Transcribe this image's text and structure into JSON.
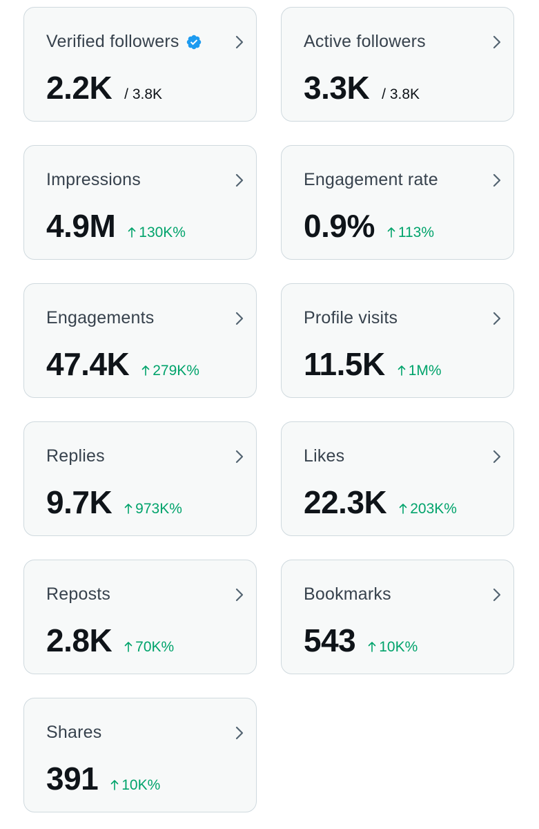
{
  "colors": {
    "card_background": "#f7f9f9",
    "card_border": "#cfd9de",
    "label_text": "#37424d",
    "value_text": "#0f1419",
    "positive_change": "#00a36b",
    "verified_badge": "#1d9bf0",
    "chevron": "#536471"
  },
  "icons": {
    "verified": "verified-badge-icon",
    "chevron": "chevron-right-icon",
    "change": "arrow-up-icon"
  },
  "cards": [
    {
      "title": "Verified followers",
      "value": "2.2K",
      "total": "/ 3.8K",
      "verified": true
    },
    {
      "title": "Active followers",
      "value": "3.3K",
      "total": "/ 3.8K"
    },
    {
      "title": "Impressions",
      "value": "4.9M",
      "change": "130K%"
    },
    {
      "title": "Engagement rate",
      "value": "0.9%",
      "change": "113%"
    },
    {
      "title": "Engagements",
      "value": "47.4K",
      "change": "279K%"
    },
    {
      "title": "Profile visits",
      "value": "11.5K",
      "change": "1M%"
    },
    {
      "title": "Replies",
      "value": "9.7K",
      "change": "973K%"
    },
    {
      "title": "Likes",
      "value": "22.3K",
      "change": "203K%"
    },
    {
      "title": "Reposts",
      "value": "2.8K",
      "change": "70K%"
    },
    {
      "title": "Bookmarks",
      "value": "543",
      "change": "10K%"
    },
    {
      "title": "Shares",
      "value": "391",
      "change": "10K%"
    }
  ]
}
